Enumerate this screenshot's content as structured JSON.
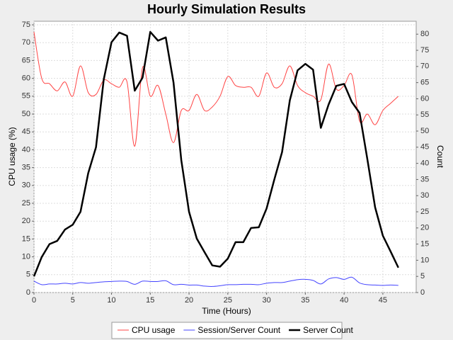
{
  "chart_data": {
    "type": "line",
    "title": "Hourly Simulation Results",
    "x_label": "Time (Hours)",
    "y_label": "CPU usage (%)",
    "y2_label": "Count",
    "x": [
      0,
      1,
      2,
      3,
      4,
      5,
      6,
      7,
      8,
      9,
      10,
      11,
      12,
      13,
      14,
      15,
      16,
      17,
      18,
      19,
      20,
      21,
      22,
      23,
      24,
      25,
      26,
      27,
      28,
      29,
      30,
      31,
      32,
      33,
      34,
      35,
      36,
      37,
      38,
      39,
      40,
      41,
      42,
      43,
      44,
      45,
      46,
      47
    ],
    "xlim": [
      0,
      49.3
    ],
    "xticks": [
      0,
      5,
      10,
      15,
      20,
      25,
      30,
      35,
      40,
      45
    ],
    "ylim": [
      0,
      76
    ],
    "yticks": [
      0,
      5,
      10,
      15,
      20,
      25,
      30,
      35,
      40,
      45,
      50,
      55,
      60,
      65,
      70,
      75
    ],
    "y2lim": [
      0,
      84
    ],
    "y2ticks": [
      0,
      5,
      10,
      15,
      20,
      25,
      30,
      35,
      40,
      45,
      50,
      55,
      60,
      65,
      70,
      75,
      80
    ],
    "grid": true,
    "legend": "bottom",
    "series": [
      {
        "name": "CPU usage",
        "color": "#ff4444",
        "width": 1,
        "smooth": true,
        "values": [
          73,
          60,
          58.5,
          56.5,
          59,
          55,
          63.5,
          56,
          55.5,
          59.5,
          58.5,
          57.5,
          59,
          41,
          63,
          55,
          58,
          50,
          42,
          51,
          51,
          55.5,
          51,
          52,
          55,
          60.5,
          58,
          57.5,
          57.5,
          55,
          61.5,
          57.5,
          58.5,
          63.5,
          58,
          56,
          55,
          54,
          64,
          57,
          58,
          61,
          48,
          50,
          47,
          51,
          53,
          55
        ]
      },
      {
        "name": "Session/Server Count",
        "color": "#4444ff",
        "width": 1,
        "smooth": true,
        "values": [
          3.2,
          2.2,
          2.4,
          2.4,
          2.6,
          2.4,
          2.8,
          2.6,
          2.8,
          3,
          3.1,
          3.2,
          3.1,
          2.3,
          3.2,
          3.1,
          3.1,
          3.3,
          2.2,
          2.3,
          2.1,
          2.1,
          1.8,
          1.7,
          1.9,
          2.2,
          2.2,
          2.3,
          2.3,
          2.2,
          2.6,
          2.8,
          2.8,
          3.2,
          3.6,
          3.7,
          3.4,
          2.4,
          3.8,
          4.2,
          3.7,
          4.3,
          2.7,
          2.2,
          2.1,
          2,
          2.1,
          2
        ]
      },
      {
        "name": "Server Count",
        "color": "#000000",
        "width": 2.5,
        "smooth": false,
        "axis": "y2",
        "values": [
          5,
          11,
          15,
          16,
          19.5,
          21,
          25,
          37,
          45,
          66,
          77.5,
          80.5,
          79.5,
          62.5,
          66.5,
          80.7,
          78,
          79,
          65,
          41,
          25,
          16.7,
          12.5,
          8.4,
          8,
          10.5,
          15.6,
          15.6,
          20,
          20.2,
          26,
          35,
          43.5,
          59.5,
          68.8,
          70.8,
          69,
          51,
          58.2,
          64,
          64.6,
          59,
          55.6,
          41.3,
          26.4,
          17.6,
          12.7,
          7.7
        ]
      }
    ]
  }
}
